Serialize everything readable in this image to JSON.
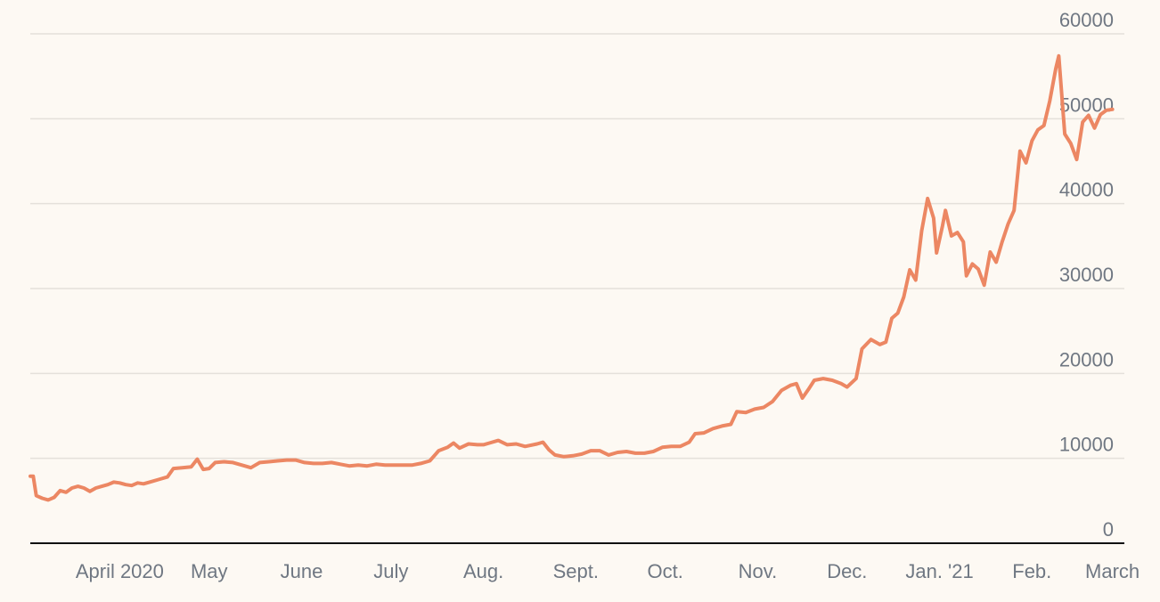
{
  "chart_data": {
    "type": "line",
    "title": "",
    "xlabel": "",
    "ylabel": "",
    "x_ticks": [
      "April 2020",
      "May",
      "June",
      "July",
      "Aug.",
      "Sept.",
      "Oct.",
      "Nov.",
      "Dec.",
      "Jan. '21",
      "Feb.",
      "March"
    ],
    "y_ticks": [
      0,
      10000,
      20000,
      30000,
      40000,
      50000,
      60000
    ],
    "ylim": [
      0,
      60000
    ],
    "xlim": [
      "2020-03-13",
      "2021-03-15"
    ],
    "grid": true,
    "legend": "none",
    "color": "#ec8763",
    "series": [
      {
        "points": [
          [
            "2020-03-13",
            7900
          ],
          [
            "2020-03-14",
            7900
          ],
          [
            "2020-03-15",
            5600
          ],
          [
            "2020-03-17",
            5300
          ],
          [
            "2020-03-19",
            5100
          ],
          [
            "2020-03-21",
            5400
          ],
          [
            "2020-03-23",
            6200
          ],
          [
            "2020-03-25",
            6000
          ],
          [
            "2020-03-27",
            6500
          ],
          [
            "2020-03-29",
            6700
          ],
          [
            "2020-03-31",
            6500
          ],
          [
            "2020-04-02",
            6100
          ],
          [
            "2020-04-04",
            6500
          ],
          [
            "2020-04-06",
            6700
          ],
          [
            "2020-04-08",
            6900
          ],
          [
            "2020-04-10",
            7200
          ],
          [
            "2020-04-12",
            7100
          ],
          [
            "2020-04-14",
            6900
          ],
          [
            "2020-04-16",
            6800
          ],
          [
            "2020-04-18",
            7100
          ],
          [
            "2020-04-20",
            7000
          ],
          [
            "2020-04-22",
            7200
          ],
          [
            "2020-04-25",
            7500
          ],
          [
            "2020-04-28",
            7800
          ],
          [
            "2020-04-30",
            8800
          ],
          [
            "2020-05-03",
            8900
          ],
          [
            "2020-05-06",
            9000
          ],
          [
            "2020-05-08",
            9900
          ],
          [
            "2020-05-10",
            8700
          ],
          [
            "2020-05-12",
            8800
          ],
          [
            "2020-05-14",
            9500
          ],
          [
            "2020-05-17",
            9600
          ],
          [
            "2020-05-20",
            9500
          ],
          [
            "2020-05-23",
            9200
          ],
          [
            "2020-05-26",
            8900
          ],
          [
            "2020-05-29",
            9500
          ],
          [
            "2020-06-01",
            9600
          ],
          [
            "2020-06-04",
            9700
          ],
          [
            "2020-06-07",
            9800
          ],
          [
            "2020-06-10",
            9800
          ],
          [
            "2020-06-13",
            9500
          ],
          [
            "2020-06-16",
            9400
          ],
          [
            "2020-06-19",
            9400
          ],
          [
            "2020-06-22",
            9500
          ],
          [
            "2020-06-25",
            9300
          ],
          [
            "2020-06-28",
            9100
          ],
          [
            "2020-07-01",
            9200
          ],
          [
            "2020-07-04",
            9100
          ],
          [
            "2020-07-07",
            9300
          ],
          [
            "2020-07-10",
            9200
          ],
          [
            "2020-07-13",
            9200
          ],
          [
            "2020-07-16",
            9200
          ],
          [
            "2020-07-19",
            9200
          ],
          [
            "2020-07-22",
            9400
          ],
          [
            "2020-07-25",
            9700
          ],
          [
            "2020-07-28",
            10900
          ],
          [
            "2020-07-31",
            11300
          ],
          [
            "2020-08-02",
            11800
          ],
          [
            "2020-08-04",
            11200
          ],
          [
            "2020-08-07",
            11700
          ],
          [
            "2020-08-10",
            11600
          ],
          [
            "2020-08-12",
            11600
          ],
          [
            "2020-08-14",
            11800
          ],
          [
            "2020-08-17",
            12100
          ],
          [
            "2020-08-20",
            11600
          ],
          [
            "2020-08-23",
            11700
          ],
          [
            "2020-08-26",
            11400
          ],
          [
            "2020-08-30",
            11700
          ],
          [
            "2020-09-01",
            11900
          ],
          [
            "2020-09-03",
            11000
          ],
          [
            "2020-09-05",
            10400
          ],
          [
            "2020-09-08",
            10200
          ],
          [
            "2020-09-11",
            10300
          ],
          [
            "2020-09-14",
            10500
          ],
          [
            "2020-09-17",
            10900
          ],
          [
            "2020-09-20",
            10900
          ],
          [
            "2020-09-23",
            10400
          ],
          [
            "2020-09-26",
            10700
          ],
          [
            "2020-09-29",
            10800
          ],
          [
            "2020-10-02",
            10600
          ],
          [
            "2020-10-05",
            10600
          ],
          [
            "2020-10-08",
            10800
          ],
          [
            "2020-10-11",
            11300
          ],
          [
            "2020-10-14",
            11400
          ],
          [
            "2020-10-17",
            11400
          ],
          [
            "2020-10-20",
            11900
          ],
          [
            "2020-10-22",
            12900
          ],
          [
            "2020-10-25",
            13000
          ],
          [
            "2020-10-28",
            13500
          ],
          [
            "2020-10-31",
            13800
          ],
          [
            "2020-11-03",
            14000
          ],
          [
            "2020-11-05",
            15500
          ],
          [
            "2020-11-08",
            15400
          ],
          [
            "2020-11-11",
            15800
          ],
          [
            "2020-11-14",
            16000
          ],
          [
            "2020-11-17",
            16700
          ],
          [
            "2020-11-20",
            18000
          ],
          [
            "2020-11-23",
            18600
          ],
          [
            "2020-11-25",
            18800
          ],
          [
            "2020-11-27",
            17100
          ],
          [
            "2020-11-29",
            18100
          ],
          [
            "2020-12-01",
            19200
          ],
          [
            "2020-12-04",
            19400
          ],
          [
            "2020-12-07",
            19200
          ],
          [
            "2020-12-10",
            18800
          ],
          [
            "2020-12-12",
            18400
          ],
          [
            "2020-12-15",
            19400
          ],
          [
            "2020-12-17",
            22900
          ],
          [
            "2020-12-20",
            24000
          ],
          [
            "2020-12-23",
            23400
          ],
          [
            "2020-12-25",
            23700
          ],
          [
            "2020-12-27",
            26500
          ],
          [
            "2020-12-29",
            27100
          ],
          [
            "2020-12-31",
            29000
          ],
          [
            "2021-01-02",
            32200
          ],
          [
            "2021-01-04",
            31000
          ],
          [
            "2021-01-06",
            36800
          ],
          [
            "2021-01-08",
            40600
          ],
          [
            "2021-01-10",
            38300
          ],
          [
            "2021-01-11",
            34200
          ],
          [
            "2021-01-13",
            37400
          ],
          [
            "2021-01-14",
            39200
          ],
          [
            "2021-01-16",
            36200
          ],
          [
            "2021-01-18",
            36600
          ],
          [
            "2021-01-20",
            35500
          ],
          [
            "2021-01-21",
            31500
          ],
          [
            "2021-01-23",
            32900
          ],
          [
            "2021-01-25",
            32300
          ],
          [
            "2021-01-27",
            30400
          ],
          [
            "2021-01-29",
            34300
          ],
          [
            "2021-01-31",
            33100
          ],
          [
            "2021-02-02",
            35500
          ],
          [
            "2021-02-04",
            37600
          ],
          [
            "2021-02-06",
            39200
          ],
          [
            "2021-02-08",
            46200
          ],
          [
            "2021-02-10",
            44800
          ],
          [
            "2021-02-12",
            47400
          ],
          [
            "2021-02-14",
            48700
          ],
          [
            "2021-02-16",
            49200
          ],
          [
            "2021-02-18",
            52100
          ],
          [
            "2021-02-20",
            55900
          ],
          [
            "2021-02-21",
            57400
          ],
          [
            "2021-02-23",
            48200
          ],
          [
            "2021-02-25",
            47100
          ],
          [
            "2021-02-27",
            45200
          ],
          [
            "2021-03-01",
            49600
          ],
          [
            "2021-03-03",
            50400
          ],
          [
            "2021-03-05",
            48900
          ],
          [
            "2021-03-07",
            50500
          ],
          [
            "2021-03-09",
            51000
          ],
          [
            "2021-03-11",
            51100
          ]
        ]
      }
    ]
  }
}
